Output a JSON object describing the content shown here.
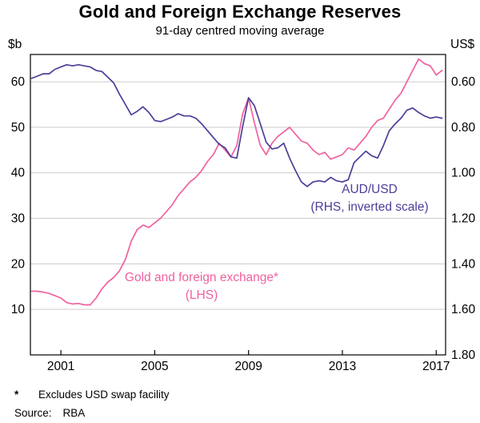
{
  "title": "Gold and Foreign Exchange Reserves",
  "subtitle": "91-day centred moving average",
  "footnote": {
    "marker": "*",
    "text": "Excludes USD swap facility"
  },
  "source": {
    "label": "Source:",
    "value": "RBA"
  },
  "colors": {
    "reserves": "#f0619f",
    "audusd": "#4a3f99",
    "grid": "#cccccc",
    "frame": "#000000"
  },
  "chart_data": {
    "type": "line",
    "title": "Gold and Foreign Exchange Reserves",
    "subtitle": "91-day centred moving average",
    "xlabel": "",
    "left_axis": {
      "unit_label": "$b",
      "ticks": [
        10,
        20,
        30,
        40,
        50,
        60
      ],
      "range": [
        0,
        66
      ]
    },
    "right_axis": {
      "unit_label": "US$",
      "inverted": true,
      "tick_labels": [
        "0.60",
        "0.80",
        "1.00",
        "1.20",
        "1.40",
        "1.60",
        "1.80"
      ],
      "align": {
        "right": [
          0.6,
          1.8
        ],
        "left": [
          60,
          0
        ]
      }
    },
    "x_axis": {
      "ticks": [
        2001,
        2005,
        2009,
        2013,
        2017
      ],
      "range": [
        1999.7,
        2017.4
      ]
    },
    "grid": true,
    "x": [
      1999.75,
      2000,
      2000.25,
      2000.5,
      2000.75,
      2001,
      2001.25,
      2001.5,
      2001.75,
      2002,
      2002.25,
      2002.5,
      2002.75,
      2003,
      2003.25,
      2003.5,
      2003.75,
      2004,
      2004.25,
      2004.5,
      2004.75,
      2005,
      2005.25,
      2005.5,
      2005.75,
      2006,
      2006.25,
      2006.5,
      2006.75,
      2007,
      2007.25,
      2007.5,
      2007.75,
      2008,
      2008.25,
      2008.5,
      2008.75,
      2009,
      2009.25,
      2009.5,
      2009.75,
      2010,
      2010.25,
      2010.5,
      2010.75,
      2011,
      2011.25,
      2011.5,
      2011.75,
      2012,
      2012.25,
      2012.5,
      2012.75,
      2013,
      2013.25,
      2013.5,
      2013.75,
      2014,
      2014.25,
      2014.5,
      2014.75,
      2015,
      2015.25,
      2015.5,
      2015.75,
      2016,
      2016.25,
      2016.5,
      2016.75,
      2017,
      2017.25
    ],
    "series": [
      {
        "name": "Gold and foreign exchange* (LHS)",
        "axis": "left",
        "color_key": "reserves",
        "values": [
          14,
          14,
          13.8,
          13.5,
          13,
          12.5,
          11.5,
          11.2,
          11.3,
          11,
          11,
          12.5,
          14.5,
          16,
          17,
          18.5,
          21,
          25,
          27.5,
          28.5,
          28,
          29,
          30,
          31.5,
          33,
          35,
          36.5,
          38,
          39,
          40.5,
          42.5,
          44,
          46.5,
          45,
          43.5,
          46,
          53,
          56.5,
          51,
          46,
          44,
          46.5,
          48,
          49,
          50,
          48.5,
          47,
          46.5,
          45,
          44,
          44.5,
          43,
          43.5,
          44,
          45.5,
          45,
          46.5,
          48,
          50,
          51.5,
          52,
          54,
          56,
          57.5,
          60,
          62.5,
          65,
          64,
          63.5,
          61.5,
          62.5
        ]
      },
      {
        "name": "AUD/USD (RHS, inverted scale)",
        "axis": "right",
        "color_key": "audusd",
        "values": [
          0.585,
          0.575,
          0.565,
          0.565,
          0.545,
          0.535,
          0.525,
          0.53,
          0.525,
          0.53,
          0.535,
          0.55,
          0.555,
          0.58,
          0.605,
          0.655,
          0.7,
          0.745,
          0.73,
          0.71,
          0.735,
          0.77,
          0.775,
          0.765,
          0.755,
          0.74,
          0.75,
          0.75,
          0.76,
          0.785,
          0.815,
          0.845,
          0.875,
          0.89,
          0.93,
          0.935,
          0.795,
          0.67,
          0.705,
          0.785,
          0.865,
          0.895,
          0.89,
          0.87,
          0.935,
          0.99,
          1.04,
          1.06,
          1.04,
          1.035,
          1.04,
          1.02,
          1.035,
          1.04,
          1.03,
          0.955,
          0.93,
          0.905,
          0.925,
          0.935,
          0.88,
          0.815,
          0.785,
          0.76,
          0.725,
          0.715,
          0.735,
          0.75,
          0.76,
          0.755,
          0.76
        ]
      }
    ],
    "annotations": [
      {
        "lines": [
          "AUD/USD",
          "(RHS, inverted scale)"
        ],
        "color_key": "audusd",
        "x": 462,
        "y": 241
      },
      {
        "lines": [
          "Gold and foreign exchange*",
          "(LHS)"
        ],
        "color_key": "reserves",
        "x": 252,
        "y": 351
      }
    ],
    "legend_position": "inline-annotations"
  }
}
